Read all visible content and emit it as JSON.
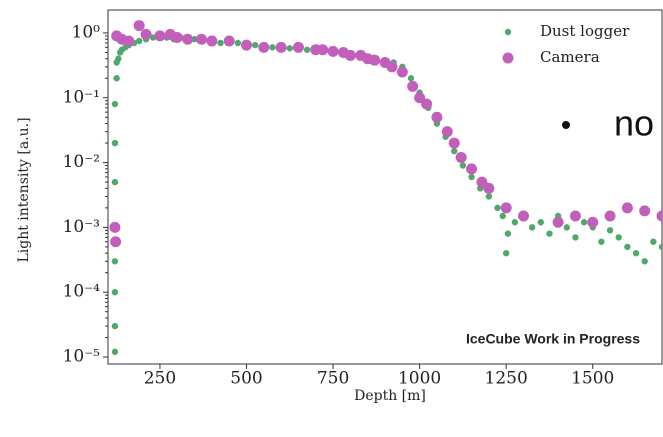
{
  "slide_text": "no",
  "chart_data": {
    "type": "scatter",
    "x_label": "Depth [m]",
    "y_label": "Light intensity [a.u.]",
    "annotation": "IceCube Work in Progress",
    "ylog": true,
    "legend": "upper right",
    "xlim": [
      100,
      1700
    ],
    "ylim": [
      7.8e-06,
      2.26
    ],
    "xticks": [
      250,
      500,
      750,
      1000,
      1250,
      1500
    ],
    "yticks": [
      {
        "value": 1,
        "label": "10⁰"
      },
      {
        "value": 0.1,
        "label": "10⁻¹"
      },
      {
        "value": 0.01,
        "label": "10⁻²"
      },
      {
        "value": 0.001,
        "label": "10⁻³"
      },
      {
        "value": 0.0001,
        "label": "10⁻⁴"
      },
      {
        "value": 1e-05,
        "label": "10⁻⁵"
      }
    ],
    "series": [
      {
        "name": "Dust logger",
        "color": "#4fa96b",
        "marker_size": 3.2,
        "x": [
          120,
          120,
          120,
          120,
          120,
          120,
          120,
          120,
          125,
          125,
          130,
          135,
          140,
          150,
          160,
          175,
          190,
          210,
          230,
          250,
          270,
          290,
          310,
          330,
          350,
          375,
          400,
          425,
          450,
          475,
          500,
          525,
          550,
          575,
          600,
          625,
          650,
          675,
          700,
          725,
          750,
          775,
          800,
          825,
          850,
          875,
          900,
          925,
          950,
          975,
          1000,
          1025,
          1050,
          1075,
          1100,
          1125,
          1150,
          1175,
          1200,
          1225,
          1240,
          1250,
          1255,
          1275,
          1300,
          1325,
          1350,
          1375,
          1400,
          1425,
          1450,
          1475,
          1500,
          1525,
          1550,
          1575,
          1600,
          1625,
          1650,
          1675,
          1700
        ],
        "values": [
          1.2e-05,
          3e-05,
          0.0001,
          0.0003,
          0.001,
          0.005,
          0.02,
          0.08,
          0.2,
          0.35,
          0.4,
          0.5,
          0.55,
          0.6,
          0.65,
          0.7,
          0.75,
          0.8,
          0.85,
          0.85,
          0.85,
          0.8,
          0.85,
          0.8,
          0.8,
          0.75,
          0.75,
          0.7,
          0.7,
          0.7,
          0.65,
          0.65,
          0.62,
          0.6,
          0.6,
          0.58,
          0.57,
          0.55,
          0.55,
          0.52,
          0.5,
          0.48,
          0.45,
          0.45,
          0.42,
          0.4,
          0.38,
          0.35,
          0.3,
          0.2,
          0.12,
          0.07,
          0.04,
          0.025,
          0.015,
          0.009,
          0.006,
          0.004,
          0.003,
          0.002,
          0.0015,
          0.0004,
          0.0008,
          0.0012,
          0.0015,
          0.001,
          0.0012,
          0.0008,
          0.0015,
          0.001,
          0.0007,
          0.0012,
          0.001,
          0.0006,
          0.0009,
          0.0007,
          0.0005,
          0.0004,
          0.0003,
          0.0006,
          0.0005
        ]
      },
      {
        "name": "Camera",
        "color": "#c25fbb",
        "marker_size": 5.5,
        "x": [
          120,
          122,
          125,
          140,
          160,
          190,
          210,
          250,
          280,
          300,
          330,
          370,
          400,
          450,
          500,
          550,
          600,
          650,
          700,
          720,
          750,
          780,
          800,
          830,
          850,
          870,
          900,
          920,
          950,
          980,
          1000,
          1020,
          1050,
          1080,
          1100,
          1120,
          1150,
          1180,
          1200,
          1250,
          1300,
          1400,
          1450,
          1500,
          1550,
          1600,
          1650,
          1700
        ],
        "values": [
          0.001,
          0.0006,
          0.9,
          0.8,
          0.75,
          1.3,
          0.95,
          0.9,
          0.95,
          0.85,
          0.8,
          0.8,
          0.75,
          0.75,
          0.65,
          0.6,
          0.6,
          0.6,
          0.55,
          0.55,
          0.52,
          0.5,
          0.45,
          0.45,
          0.4,
          0.38,
          0.35,
          0.3,
          0.25,
          0.15,
          0.1,
          0.08,
          0.05,
          0.03,
          0.02,
          0.012,
          0.008,
          0.005,
          0.004,
          0.002,
          0.0015,
          0.0012,
          0.0015,
          0.0012,
          0.0015,
          0.002,
          0.0018,
          0.0015
        ]
      }
    ]
  }
}
